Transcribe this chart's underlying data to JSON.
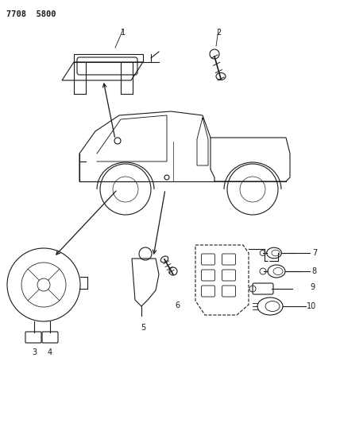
{
  "title_code": "7708 5800",
  "bg_color": "#ffffff",
  "line_color": "#1a1a1a",
  "figsize": [
    4.28,
    5.33
  ],
  "dpi": 100
}
